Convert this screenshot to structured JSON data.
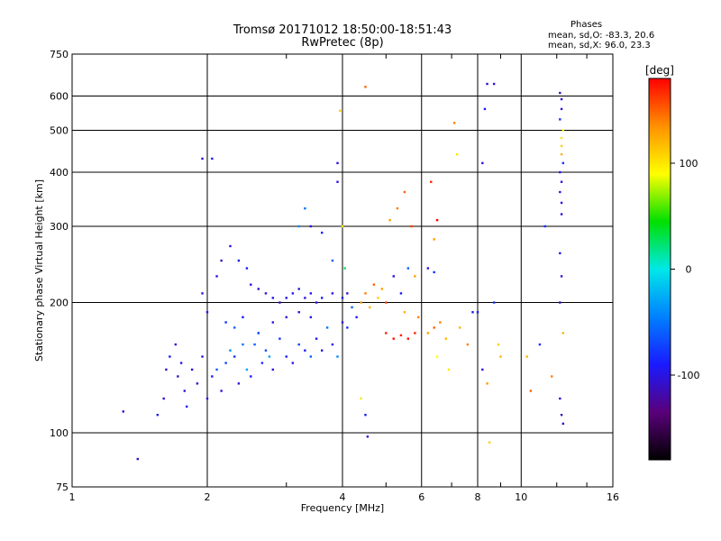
{
  "chart_data": {
    "type": "scatter",
    "title": "Tromsø 20171012 18:50:00-18:51:43",
    "subtitle": "RwPretec (8p)",
    "stats_header": "Phases",
    "stats_lines": [
      "mean, sd,O: -83.3, 20.6",
      "mean, sd,X:  96.0, 23.3"
    ],
    "xlabel": "Frequency [MHz]",
    "ylabel": "Stationary phase Virtual Height [km]",
    "x_scale": "log",
    "y_scale": "log",
    "xlim": [
      1,
      16
    ],
    "ylim": [
      75,
      750
    ],
    "x_ticks": [
      1,
      2,
      4,
      6,
      8,
      10,
      16
    ],
    "y_ticks": [
      75,
      100,
      200,
      300,
      400,
      500,
      600,
      750
    ],
    "grid": true,
    "colorbar": {
      "label": "[deg]",
      "range": [
        -180,
        180
      ],
      "ticks": [
        100,
        0,
        -100
      ],
      "colors": [
        "#000000",
        "#5a007a",
        "#1a1aff",
        "#0080ff",
        "#00e8e8",
        "#00e000",
        "#ffff00",
        "#ff9000",
        "#ff0000"
      ]
    },
    "points": [
      [
        1.3,
        112,
        -100
      ],
      [
        1.4,
        87,
        -110
      ],
      [
        1.55,
        110,
        -95
      ],
      [
        1.6,
        120,
        -100
      ],
      [
        1.62,
        140,
        -105
      ],
      [
        1.65,
        150,
        -90
      ],
      [
        1.7,
        160,
        -100
      ],
      [
        1.72,
        135,
        -110
      ],
      [
        1.75,
        145,
        -95
      ],
      [
        1.78,
        125,
        -100
      ],
      [
        1.8,
        115,
        -90
      ],
      [
        1.85,
        140,
        -100
      ],
      [
        1.9,
        130,
        -105
      ],
      [
        1.95,
        150,
        -95
      ],
      [
        2.0,
        120,
        -100
      ],
      [
        2.05,
        135,
        -90
      ],
      [
        2.1,
        140,
        -60
      ],
      [
        2.15,
        125,
        -100
      ],
      [
        2.2,
        145,
        -70
      ],
      [
        2.25,
        155,
        -40
      ],
      [
        2.3,
        150,
        -80
      ],
      [
        2.35,
        130,
        -100
      ],
      [
        2.4,
        160,
        -50
      ],
      [
        2.45,
        140,
        -30
      ],
      [
        2.5,
        135,
        -90
      ],
      [
        2.55,
        160,
        -60
      ],
      [
        2.6,
        170,
        -40
      ],
      [
        2.65,
        145,
        -80
      ],
      [
        2.7,
        155,
        -70
      ],
      [
        2.75,
        150,
        -30
      ],
      [
        2.8,
        140,
        -100
      ],
      [
        2.9,
        165,
        -80
      ],
      [
        3.0,
        150,
        -90
      ],
      [
        3.1,
        145,
        -100
      ],
      [
        3.2,
        160,
        -70
      ],
      [
        3.3,
        155,
        -90
      ],
      [
        3.4,
        150,
        -60
      ],
      [
        3.5,
        165,
        -95
      ],
      [
        3.6,
        155,
        -100
      ],
      [
        3.7,
        175,
        -50
      ],
      [
        3.8,
        160,
        -90
      ],
      [
        3.9,
        150,
        -40
      ],
      [
        1.95,
        210,
        -100
      ],
      [
        2.0,
        190,
        -95
      ],
      [
        2.1,
        230,
        -100
      ],
      [
        2.15,
        250,
        -110
      ],
      [
        2.25,
        270,
        -100
      ],
      [
        2.35,
        250,
        -95
      ],
      [
        2.45,
        240,
        -90
      ],
      [
        2.5,
        220,
        -100
      ],
      [
        2.6,
        215,
        -105
      ],
      [
        2.7,
        210,
        -100
      ],
      [
        2.8,
        205,
        -95
      ],
      [
        2.9,
        200,
        -110
      ],
      [
        3.0,
        205,
        -100
      ],
      [
        3.1,
        210,
        -90
      ],
      [
        3.2,
        215,
        -100
      ],
      [
        3.3,
        205,
        -105
      ],
      [
        3.4,
        210,
        -95
      ],
      [
        3.5,
        200,
        -100
      ],
      [
        3.6,
        205,
        -90
      ],
      [
        3.8,
        210,
        -100
      ],
      [
        4.0,
        205,
        -95
      ],
      [
        4.1,
        210,
        -100
      ],
      [
        2.2,
        180,
        -80
      ],
      [
        2.3,
        175,
        -60
      ],
      [
        2.4,
        185,
        -90
      ],
      [
        2.6,
        170,
        -70
      ],
      [
        2.8,
        180,
        -100
      ],
      [
        3.0,
        185,
        -110
      ],
      [
        3.2,
        190,
        -100
      ],
      [
        3.4,
        185,
        -95
      ],
      [
        1.95,
        430,
        -100
      ],
      [
        2.05,
        430,
        -90
      ],
      [
        3.2,
        300,
        -40
      ],
      [
        3.3,
        330,
        -50
      ],
      [
        3.4,
        300,
        -100
      ],
      [
        3.6,
        290,
        -90
      ],
      [
        3.8,
        250,
        -60
      ],
      [
        3.9,
        380,
        -100
      ],
      [
        3.9,
        420,
        -100
      ],
      [
        3.95,
        555,
        110
      ],
      [
        4.0,
        300,
        100
      ],
      [
        4.05,
        240,
        30
      ],
      [
        4.0,
        180,
        -100
      ],
      [
        4.1,
        175,
        -80
      ],
      [
        4.2,
        195,
        -60
      ],
      [
        4.3,
        185,
        -90
      ],
      [
        4.4,
        200,
        130
      ],
      [
        4.5,
        210,
        140
      ],
      [
        4.6,
        195,
        120
      ],
      [
        4.7,
        220,
        150
      ],
      [
        4.8,
        205,
        110
      ],
      [
        4.9,
        215,
        130
      ],
      [
        5.0,
        200,
        160
      ],
      [
        4.5,
        630,
        150
      ],
      [
        4.5,
        110,
        -90
      ],
      [
        4.4,
        120,
        100
      ],
      [
        4.55,
        98,
        -100
      ],
      [
        5.0,
        170,
        170
      ],
      [
        5.2,
        165,
        175
      ],
      [
        5.4,
        168,
        170
      ],
      [
        5.6,
        165,
        175
      ],
      [
        5.8,
        170,
        170
      ],
      [
        5.1,
        310,
        130
      ],
      [
        5.3,
        330,
        140
      ],
      [
        5.5,
        360,
        150
      ],
      [
        5.7,
        300,
        160
      ],
      [
        5.2,
        230,
        -100
      ],
      [
        5.4,
        210,
        -90
      ],
      [
        5.6,
        240,
        -60
      ],
      [
        5.8,
        230,
        130
      ],
      [
        5.5,
        190,
        120
      ],
      [
        5.9,
        185,
        140
      ],
      [
        6.2,
        240,
        -100
      ],
      [
        6.4,
        235,
        -80
      ],
      [
        6.3,
        380,
        170
      ],
      [
        6.5,
        310,
        180
      ],
      [
        6.4,
        280,
        130
      ],
      [
        6.2,
        170,
        130
      ],
      [
        6.4,
        175,
        150
      ],
      [
        6.6,
        180,
        140
      ],
      [
        6.8,
        165,
        120
      ],
      [
        6.5,
        150,
        90
      ],
      [
        6.9,
        140,
        100
      ],
      [
        7.1,
        520,
        140
      ],
      [
        7.2,
        440,
        100
      ],
      [
        7.3,
        175,
        120
      ],
      [
        7.6,
        160,
        140
      ],
      [
        7.8,
        190,
        -100
      ],
      [
        8.0,
        190,
        -90
      ],
      [
        8.2,
        140,
        -100
      ],
      [
        8.4,
        130,
        130
      ],
      [
        8.2,
        420,
        -100
      ],
      [
        8.3,
        560,
        -90
      ],
      [
        8.4,
        640,
        -110
      ],
      [
        8.7,
        640,
        -100
      ],
      [
        8.9,
        160,
        110
      ],
      [
        9.0,
        150,
        120
      ],
      [
        8.7,
        200,
        -80
      ],
      [
        8.5,
        95,
        110
      ],
      [
        10.3,
        150,
        120
      ],
      [
        10.5,
        125,
        150
      ],
      [
        11.0,
        160,
        -80
      ],
      [
        11.3,
        300,
        -80
      ],
      [
        11.7,
        135,
        140
      ],
      [
        12.2,
        120,
        -100
      ],
      [
        12.3,
        110,
        -110
      ],
      [
        12.4,
        105,
        -100
      ],
      [
        12.2,
        260,
        -90
      ],
      [
        12.3,
        230,
        -100
      ],
      [
        12.2,
        200,
        -110
      ],
      [
        12.4,
        170,
        120
      ],
      [
        12.3,
        320,
        -100
      ],
      [
        12.3,
        340,
        -100
      ],
      [
        12.2,
        360,
        -90
      ],
      [
        12.3,
        380,
        -100
      ],
      [
        12.2,
        400,
        -95
      ],
      [
        12.4,
        420,
        -80
      ],
      [
        12.3,
        440,
        120
      ],
      [
        12.3,
        460,
        110
      ],
      [
        12.3,
        480,
        100
      ],
      [
        12.4,
        500,
        90
      ],
      [
        12.2,
        530,
        -80
      ],
      [
        12.3,
        560,
        -100
      ],
      [
        12.3,
        590,
        -100
      ],
      [
        12.2,
        610,
        -110
      ]
    ]
  }
}
